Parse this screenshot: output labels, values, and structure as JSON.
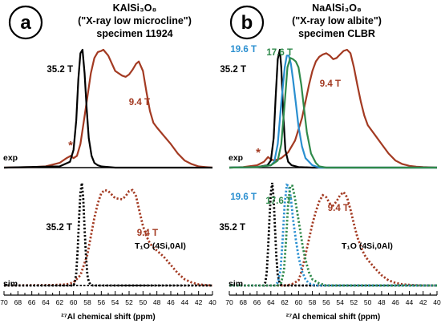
{
  "chart_data": [
    {
      "type": "line",
      "panel": "a",
      "title_lines": [
        "KAlSi₃O₈",
        "(\"X-ray low microcline\")",
        "specimen 11924"
      ],
      "xlabel": "²⁷Al chemical shift (ppm)",
      "xlim": [
        70,
        40
      ],
      "xticks": [
        "70",
        "68",
        "66",
        "64",
        "62",
        "60",
        "58",
        "56",
        "54",
        "52",
        "50",
        "48",
        "46",
        "44",
        "42",
        "40"
      ],
      "row_labels": {
        "exp": "exp",
        "sim": "sim"
      },
      "site_label": "T₁O (4Si,0Al)",
      "artifact_marker": "*",
      "colors": {
        "35.2 T": "#000000",
        "9.4 T": "#a33a22"
      },
      "experimental": [
        {
          "name": "35.2 T",
          "x": [
            70,
            62,
            60.5,
            60,
            59.6,
            59.3,
            59.0,
            58.7,
            58.4,
            58.1,
            57.8,
            57.4,
            57.0,
            56.5,
            56,
            54,
            50,
            40
          ],
          "y": [
            0,
            0.01,
            0.05,
            0.15,
            0.4,
            0.75,
            0.97,
            1.0,
            0.8,
            0.5,
            0.25,
            0.1,
            0.04,
            0.02,
            0.01,
            0,
            0,
            0
          ]
        },
        {
          "name": "9.4 T",
          "x": [
            70,
            66,
            64,
            62,
            61,
            60.4,
            60,
            59.5,
            59,
            58.5,
            58,
            57.5,
            57,
            56.5,
            56,
            55.7,
            55,
            54,
            53,
            52.5,
            52,
            51.5,
            51,
            50.6,
            50,
            49.5,
            49,
            48.5,
            48,
            47,
            46,
            45,
            44,
            43,
            42,
            41,
            40
          ],
          "y": [
            0,
            0.005,
            0.01,
            0.04,
            0.08,
            0.1,
            0.08,
            0.1,
            0.2,
            0.4,
            0.6,
            0.8,
            0.93,
            0.98,
            0.99,
            1.0,
            0.95,
            0.82,
            0.78,
            0.77,
            0.79,
            0.83,
            0.88,
            0.9,
            0.82,
            0.64,
            0.48,
            0.38,
            0.34,
            0.27,
            0.2,
            0.12,
            0.06,
            0.03,
            0.01,
            0.005,
            0
          ]
        }
      ],
      "simulated": [
        {
          "name": "35.2 T",
          "x": [
            70,
            60,
            59.8,
            59.6,
            59.4,
            59.2,
            59.0,
            58.8,
            58.6,
            58.4,
            58.2,
            58.0,
            57.8,
            57.6,
            57.2,
            40
          ],
          "y": [
            0,
            0,
            0.03,
            0.12,
            0.35,
            0.65,
            0.9,
            1.0,
            0.85,
            0.55,
            0.28,
            0.1,
            0.04,
            0.01,
            0,
            0
          ]
        },
        {
          "name": "9.4 T",
          "x": [
            70,
            63,
            61,
            60,
            59,
            58,
            57.5,
            57,
            56.5,
            56,
            55.5,
            55,
            54,
            53,
            52.5,
            52,
            51.5,
            51,
            50.5,
            50,
            49.5,
            49,
            48.5,
            48,
            47,
            46,
            45,
            44,
            43,
            42,
            41,
            40
          ],
          "y": [
            0,
            0.005,
            0.01,
            0.03,
            0.1,
            0.3,
            0.48,
            0.66,
            0.8,
            0.9,
            0.93,
            0.92,
            0.85,
            0.84,
            0.87,
            0.92,
            0.93,
            0.87,
            0.72,
            0.58,
            0.48,
            0.41,
            0.37,
            0.34,
            0.28,
            0.2,
            0.12,
            0.06,
            0.03,
            0.01,
            0.005,
            0
          ]
        }
      ]
    },
    {
      "type": "line",
      "panel": "b",
      "title_lines": [
        "NaAlSi₃O₈",
        "(\"X-ray low albite\")",
        "specimen CLBR"
      ],
      "xlabel": "²⁷Al chemical shift (ppm)",
      "xlim": [
        70,
        40
      ],
      "xticks": [
        "70",
        "68",
        "66",
        "64",
        "62",
        "60",
        "58",
        "56",
        "54",
        "52",
        "50",
        "48",
        "46",
        "44",
        "42",
        "40"
      ],
      "row_labels": {
        "exp": "exp",
        "sim": "sim"
      },
      "site_label": "T₁O (4Si,0Al)",
      "artifact_marker": "*",
      "colors": {
        "35.2 T": "#000000",
        "19.6 T": "#2a8fd0",
        "17.6 T": "#2f8a4b",
        "9.4 T": "#a33a22"
      },
      "experimental": [
        {
          "name": "35.2 T",
          "x": [
            70,
            66,
            64.5,
            64,
            63.6,
            63.3,
            63.0,
            62.7,
            62.5,
            62.2,
            61.9,
            61.5,
            61.0,
            60,
            58,
            40
          ],
          "y": [
            0,
            0.005,
            0.02,
            0.06,
            0.25,
            0.6,
            0.92,
            1.0,
            0.85,
            0.45,
            0.15,
            0.05,
            0.02,
            0.005,
            0,
            0
          ]
        },
        {
          "name": "19.6 T",
          "x": [
            70,
            66,
            64,
            63.5,
            63,
            62.5,
            62,
            61.7,
            61.4,
            61.1,
            60.8,
            60.4,
            60,
            59.5,
            59,
            58,
            57,
            40
          ],
          "y": [
            0,
            0.005,
            0.02,
            0.05,
            0.2,
            0.55,
            0.85,
            0.95,
            0.95,
            0.88,
            0.75,
            0.55,
            0.35,
            0.18,
            0.08,
            0.02,
            0,
            0
          ]
        },
        {
          "name": "17.6 T",
          "x": [
            70,
            66,
            64,
            63,
            62.5,
            62,
            61.6,
            61.2,
            60.8,
            60.4,
            60,
            59.6,
            59.2,
            58.8,
            58.2,
            57.5,
            57,
            56,
            40
          ],
          "y": [
            0,
            0.005,
            0.02,
            0.06,
            0.2,
            0.55,
            0.85,
            0.93,
            0.92,
            0.9,
            0.85,
            0.7,
            0.5,
            0.3,
            0.12,
            0.04,
            0.01,
            0,
            0
          ]
        },
        {
          "name": "9.4 T",
          "x": [
            70,
            68,
            66,
            65,
            64.4,
            64,
            63.5,
            62.5,
            61.5,
            60.5,
            59.5,
            59,
            58.5,
            58,
            57.5,
            57,
            56.5,
            56,
            55.5,
            55,
            54.5,
            54,
            53.5,
            53,
            52.5,
            52,
            51.5,
            51,
            50.5,
            50,
            49,
            48,
            47,
            46,
            45,
            44,
            43,
            42,
            40
          ],
          "y": [
            0,
            0.005,
            0.02,
            0.05,
            0.09,
            0.07,
            0.06,
            0.08,
            0.13,
            0.23,
            0.42,
            0.56,
            0.7,
            0.82,
            0.9,
            0.94,
            0.96,
            0.97,
            0.95,
            0.92,
            0.93,
            0.96,
            0.99,
            1.0,
            0.97,
            0.85,
            0.7,
            0.56,
            0.44,
            0.36,
            0.28,
            0.2,
            0.12,
            0.06,
            0.03,
            0.015,
            0.008,
            0.004,
            0
          ]
        }
      ],
      "simulated": [
        {
          "name": "35.2 T",
          "x": [
            70,
            65,
            64.8,
            64.6,
            64.4,
            64.2,
            64.0,
            63.8,
            63.6,
            63.4,
            63.2,
            63.0,
            62.8,
            62.6,
            62.2,
            40
          ],
          "y": [
            0,
            0,
            0.03,
            0.12,
            0.35,
            0.65,
            0.9,
            1.0,
            0.85,
            0.55,
            0.28,
            0.1,
            0.04,
            0.01,
            0,
            0
          ]
        },
        {
          "name": "19.6 T",
          "x": [
            70,
            63.5,
            63,
            62.6,
            62.3,
            62,
            61.7,
            61.4,
            61.1,
            60.8,
            60.4,
            60,
            59.5,
            59,
            58.5,
            57.5,
            40
          ],
          "y": [
            0,
            0,
            0.03,
            0.15,
            0.45,
            0.8,
            0.98,
            0.97,
            0.85,
            0.65,
            0.45,
            0.28,
            0.14,
            0.06,
            0.02,
            0,
            0
          ]
        },
        {
          "name": "17.6 T",
          "x": [
            70,
            63,
            62.5,
            62.1,
            61.8,
            61.5,
            61.2,
            60.9,
            60.6,
            60.2,
            59.8,
            59.4,
            59,
            58.5,
            58,
            57,
            56,
            40
          ],
          "y": [
            0,
            0,
            0.03,
            0.15,
            0.45,
            0.8,
            0.97,
            0.97,
            0.88,
            0.72,
            0.55,
            0.38,
            0.25,
            0.13,
            0.06,
            0.02,
            0,
            0
          ]
        },
        {
          "name": "9.4 T",
          "x": [
            70,
            62,
            61,
            60,
            59.5,
            59,
            58.5,
            58,
            57.5,
            57,
            56.5,
            56,
            55.5,
            55,
            54.5,
            54,
            53.5,
            53,
            52.5,
            52,
            51.5,
            51,
            50.5,
            50,
            49,
            48,
            47,
            46,
            45,
            44,
            43,
            42,
            41,
            40
          ],
          "y": [
            0,
            0,
            0.01,
            0.05,
            0.15,
            0.3,
            0.45,
            0.6,
            0.72,
            0.82,
            0.88,
            0.86,
            0.8,
            0.78,
            0.82,
            0.88,
            0.91,
            0.86,
            0.74,
            0.6,
            0.47,
            0.38,
            0.3,
            0.25,
            0.17,
            0.1,
            0.05,
            0.025,
            0.012,
            0.006,
            0.003,
            0.001,
            0,
            0
          ]
        }
      ]
    }
  ]
}
